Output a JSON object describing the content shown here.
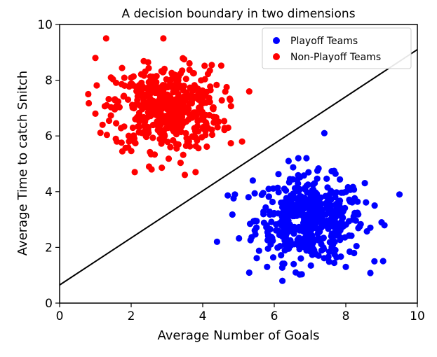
{
  "chart_data": {
    "type": "scatter",
    "title": "A decision boundary in two dimensions",
    "xlabel": "Average Number of Goals",
    "ylabel": "Average Time to catch Snitch",
    "xlim": [
      0,
      10
    ],
    "ylim": [
      0,
      10
    ],
    "xticks": [
      "0",
      "2",
      "4",
      "6",
      "8",
      "10"
    ],
    "yticks": [
      "0",
      "2",
      "4",
      "6",
      "8",
      "10"
    ],
    "grid": false,
    "legend_position": "top-right",
    "series": [
      {
        "name": "Playoff Teams",
        "color": "#0000ff",
        "center": [
          7.0,
          3.0
        ],
        "count": 500,
        "points": [
          [
            7.4,
            6.1
          ],
          [
            9.5,
            3.9
          ],
          [
            4.4,
            2.2
          ],
          [
            4.9,
            3.9
          ],
          [
            8.8,
            1.5
          ],
          [
            6.6,
            1.1
          ],
          [
            6.4,
            5.1
          ],
          [
            6.9,
            5.2
          ],
          [
            5.4,
            4.4
          ],
          [
            9.0,
            2.9
          ],
          [
            5.8,
            1.3
          ],
          [
            8.0,
            1.3
          ]
        ]
      },
      {
        "name": "Non-Playoff Teams",
        "color": "#ff0000",
        "center": [
          3.0,
          7.0
        ],
        "count": 500,
        "points": [
          [
            1.3,
            9.5
          ],
          [
            2.9,
            9.5
          ],
          [
            1.0,
            8.8
          ],
          [
            5.1,
            5.8
          ],
          [
            0.8,
            7.5
          ],
          [
            1.0,
            6.8
          ],
          [
            2.5,
            4.9
          ],
          [
            3.5,
            4.6
          ],
          [
            3.8,
            4.7
          ],
          [
            2.1,
            4.7
          ],
          [
            1.6,
            5.8
          ],
          [
            1.2,
            6.4
          ]
        ]
      }
    ],
    "boundary_line": {
      "points": [
        [
          0,
          0.65
        ],
        [
          10,
          9.1
        ]
      ],
      "color": "#000000"
    }
  }
}
